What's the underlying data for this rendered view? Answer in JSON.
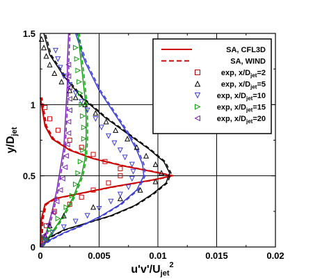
{
  "chart_data": {
    "type": "line",
    "title": "",
    "xlabel": {
      "main": "u'v'/U",
      "sub": "jet",
      "sup": "2"
    },
    "ylabel": {
      "main": "y/D",
      "sub": "jet"
    },
    "xlim": [
      0,
      0.02
    ],
    "ylim": [
      0,
      1.5
    ],
    "x_ticks": [
      0,
      0.005,
      0.01,
      0.015,
      0.02
    ],
    "x_tick_labels": [
      "0",
      "0.005",
      "0.01",
      "0.015",
      "0.02"
    ],
    "y_ticks": [
      0,
      0.5,
      1,
      1.5
    ],
    "y_tick_labels": [
      "0",
      "0.5",
      "1",
      "1.5"
    ],
    "grid": true,
    "legend_position": "top-right",
    "colors": {
      "red": "#cc0000",
      "black": "#000000",
      "blue": "#3b3bd6",
      "green": "#0f9d0f",
      "purple": "#7a1fb5"
    },
    "legend": [
      {
        "label": "SA, CFL3D",
        "sub": "",
        "tail": "",
        "kind": "solid",
        "color": "#cc0000"
      },
      {
        "label": "SA, WIND",
        "sub": "",
        "tail": "",
        "kind": "dashed",
        "color": "#cc0000"
      },
      {
        "label": "exp, x/D",
        "sub": "jet",
        "tail": "=2",
        "kind": "square",
        "color": "#cc0000"
      },
      {
        "label": "exp, x/D",
        "sub": "jet",
        "tail": "=5",
        "kind": "triangle-up",
        "color": "#000000"
      },
      {
        "label": "exp, x/D",
        "sub": "jet",
        "tail": "=10",
        "kind": "triangle-down",
        "color": "#3b3bd6"
      },
      {
        "label": "exp, x/D",
        "sub": "jet",
        "tail": "=15",
        "kind": "triangle-right",
        "color": "#0f9d0f"
      },
      {
        "label": "exp, x/D",
        "sub": "jet",
        "tail": "=20",
        "kind": "triangle-left",
        "color": "#7a1fb5"
      }
    ],
    "model_curves": [
      {
        "station": 2,
        "color": "#cc0000",
        "width": 2,
        "points": [
          [
            0.0,
            0.0
          ],
          [
            5e-05,
            0.1
          ],
          [
            0.0001,
            0.2
          ],
          [
            0.0004,
            0.3
          ],
          [
            0.0012,
            0.34
          ],
          [
            0.003,
            0.37
          ],
          [
            0.006,
            0.42
          ],
          [
            0.0095,
            0.47
          ],
          [
            0.0112,
            0.5
          ],
          [
            0.0095,
            0.53
          ],
          [
            0.007,
            0.57
          ],
          [
            0.0045,
            0.62
          ],
          [
            0.0025,
            0.68
          ],
          [
            0.001,
            0.76
          ],
          [
            0.0004,
            0.85
          ],
          [
            0.0002,
            0.95
          ],
          [
            0.0,
            1.05
          ]
        ]
      },
      {
        "station": 5,
        "color": "#000000",
        "width": 1.5,
        "points": [
          [
            0.0,
            0.0
          ],
          [
            0.0008,
            0.07
          ],
          [
            0.002,
            0.12
          ],
          [
            0.004,
            0.17
          ],
          [
            0.006,
            0.22
          ],
          [
            0.008,
            0.29
          ],
          [
            0.0095,
            0.37
          ],
          [
            0.0107,
            0.45
          ],
          [
            0.011,
            0.52
          ],
          [
            0.0105,
            0.6
          ],
          [
            0.0092,
            0.69
          ],
          [
            0.0075,
            0.79
          ],
          [
            0.0055,
            0.91
          ],
          [
            0.0035,
            1.05
          ],
          [
            0.002,
            1.2
          ],
          [
            0.0008,
            1.35
          ],
          [
            0.0003,
            1.5
          ]
        ]
      },
      {
        "station": 10,
        "color": "#3b3bd6",
        "width": 1.5,
        "points": [
          [
            0.0,
            0.0
          ],
          [
            0.0008,
            0.05
          ],
          [
            0.002,
            0.1
          ],
          [
            0.0035,
            0.15
          ],
          [
            0.0052,
            0.22
          ],
          [
            0.0068,
            0.3
          ],
          [
            0.0082,
            0.4
          ],
          [
            0.0088,
            0.5
          ],
          [
            0.0087,
            0.58
          ],
          [
            0.0082,
            0.68
          ],
          [
            0.0074,
            0.8
          ],
          [
            0.0062,
            0.95
          ],
          [
            0.005,
            1.1
          ],
          [
            0.0038,
            1.3
          ],
          [
            0.003,
            1.5
          ]
        ]
      },
      {
        "station": 15,
        "color": "#0f9d0f",
        "width": 1.5,
        "points": [
          [
            0.0,
            0.0
          ],
          [
            0.0008,
            0.08
          ],
          [
            0.0018,
            0.2
          ],
          [
            0.0028,
            0.35
          ],
          [
            0.0035,
            0.5
          ],
          [
            0.0038,
            0.62
          ],
          [
            0.0039,
            0.75
          ],
          [
            0.0039,
            0.9
          ],
          [
            0.0038,
            1.05
          ],
          [
            0.0036,
            1.2
          ],
          [
            0.0034,
            1.35
          ],
          [
            0.0032,
            1.5
          ]
        ]
      },
      {
        "station": 20,
        "color": "#7a1fb5",
        "width": 1.5,
        "points": [
          [
            0.0,
            0.0
          ],
          [
            0.0005,
            0.1
          ],
          [
            0.001,
            0.25
          ],
          [
            0.0014,
            0.4
          ],
          [
            0.0017,
            0.55
          ],
          [
            0.002,
            0.7
          ],
          [
            0.0021,
            0.85
          ],
          [
            0.0022,
            1.0
          ],
          [
            0.0023,
            1.15
          ],
          [
            0.0023,
            1.3
          ],
          [
            0.0024,
            1.5
          ]
        ]
      }
    ],
    "wind_offset": 0.00012,
    "experimental_series": [
      {
        "station": 2,
        "marker": "square",
        "color": "#cc0000",
        "size": 3,
        "points": [
          [
            0.0003,
            0.05
          ],
          [
            0.0005,
            0.15
          ],
          [
            0.0012,
            0.25
          ],
          [
            0.0025,
            0.3
          ],
          [
            0.0035,
            0.35
          ],
          [
            0.0045,
            0.4
          ],
          [
            0.0058,
            0.45
          ],
          [
            0.0068,
            0.5
          ],
          [
            0.0068,
            0.55
          ],
          [
            0.0055,
            0.6
          ],
          [
            0.0045,
            0.65
          ],
          [
            0.0035,
            0.7
          ],
          [
            0.0025,
            0.75
          ],
          [
            0.0015,
            0.82
          ],
          [
            0.0008,
            0.9
          ],
          [
            0.0004,
            0.98
          ]
        ]
      },
      {
        "station": 5,
        "marker": "triangle-up",
        "color": "#000000",
        "size": 3.2,
        "points": [
          [
            0.0004,
            0.08
          ],
          [
            0.0008,
            0.15
          ],
          [
            0.002,
            0.22
          ],
          [
            0.0045,
            0.28
          ],
          [
            0.0068,
            0.34
          ],
          [
            0.0085,
            0.4
          ],
          [
            0.0098,
            0.46
          ],
          [
            0.0103,
            0.52
          ],
          [
            0.0098,
            0.58
          ],
          [
            0.009,
            0.64
          ],
          [
            0.0082,
            0.7
          ],
          [
            0.0074,
            0.76
          ],
          [
            0.0064,
            0.82
          ],
          [
            0.0056,
            0.88
          ],
          [
            0.0047,
            0.94
          ],
          [
            0.0038,
            1.0
          ],
          [
            0.003,
            1.05
          ],
          [
            0.0025,
            1.1
          ],
          [
            0.0018,
            1.16
          ],
          [
            0.0012,
            1.22
          ],
          [
            0.0008,
            1.28
          ],
          [
            0.0005,
            1.34
          ],
          [
            0.0003,
            1.4
          ],
          [
            0.0001,
            1.46
          ]
        ]
      },
      {
        "station": 10,
        "marker": "triangle-down",
        "color": "#3b3bd6",
        "size": 3.2,
        "points": [
          [
            0.0004,
            0.05
          ],
          [
            0.001,
            0.1
          ],
          [
            0.002,
            0.14
          ],
          [
            0.003,
            0.18
          ],
          [
            0.004,
            0.22
          ],
          [
            0.005,
            0.27
          ],
          [
            0.006,
            0.32
          ],
          [
            0.0068,
            0.37
          ],
          [
            0.0075,
            0.42
          ],
          [
            0.0078,
            0.48
          ],
          [
            0.0079,
            0.53
          ],
          [
            0.0078,
            0.58
          ],
          [
            0.0072,
            0.63
          ],
          [
            0.0068,
            0.68
          ],
          [
            0.0063,
            0.73
          ],
          [
            0.0058,
            0.78
          ],
          [
            0.0052,
            0.84
          ],
          [
            0.0047,
            0.9
          ],
          [
            0.004,
            0.96
          ],
          [
            0.0035,
            1.02
          ],
          [
            0.003,
            1.08
          ],
          [
            0.0025,
            1.14
          ],
          [
            0.002,
            1.2
          ],
          [
            0.0017,
            1.26
          ],
          [
            0.0015,
            1.32
          ],
          [
            0.0013,
            1.38
          ]
        ]
      },
      {
        "station": 15,
        "marker": "triangle-right",
        "color": "#0f9d0f",
        "size": 3.2,
        "points": [
          [
            0.0003,
            0.06
          ],
          [
            0.0008,
            0.12
          ],
          [
            0.0015,
            0.2
          ],
          [
            0.0022,
            0.28
          ],
          [
            0.0027,
            0.36
          ],
          [
            0.003,
            0.44
          ],
          [
            0.0032,
            0.52
          ],
          [
            0.0034,
            0.6
          ],
          [
            0.0036,
            0.68
          ],
          [
            0.0037,
            0.76
          ],
          [
            0.0037,
            0.84
          ],
          [
            0.0036,
            0.92
          ],
          [
            0.0035,
            1.0
          ],
          [
            0.0034,
            1.08
          ],
          [
            0.0033,
            1.16
          ],
          [
            0.0032,
            1.24
          ],
          [
            0.0031,
            1.32
          ],
          [
            0.003,
            1.4
          ]
        ]
      },
      {
        "station": 20,
        "marker": "triangle-left",
        "color": "#7a1fb5",
        "size": 3.2,
        "points": [
          [
            0.0003,
            0.08
          ],
          [
            0.0007,
            0.16
          ],
          [
            0.0011,
            0.24
          ],
          [
            0.0014,
            0.32
          ],
          [
            0.0017,
            0.4
          ],
          [
            0.0019,
            0.48
          ],
          [
            0.0021,
            0.56
          ],
          [
            0.0022,
            0.64
          ],
          [
            0.0023,
            0.72
          ],
          [
            0.0024,
            0.8
          ],
          [
            0.0024,
            0.88
          ],
          [
            0.0025,
            0.96
          ],
          [
            0.0025,
            1.04
          ],
          [
            0.0025,
            1.12
          ],
          [
            0.0024,
            1.2
          ],
          [
            0.0024,
            1.28
          ]
        ]
      }
    ]
  }
}
